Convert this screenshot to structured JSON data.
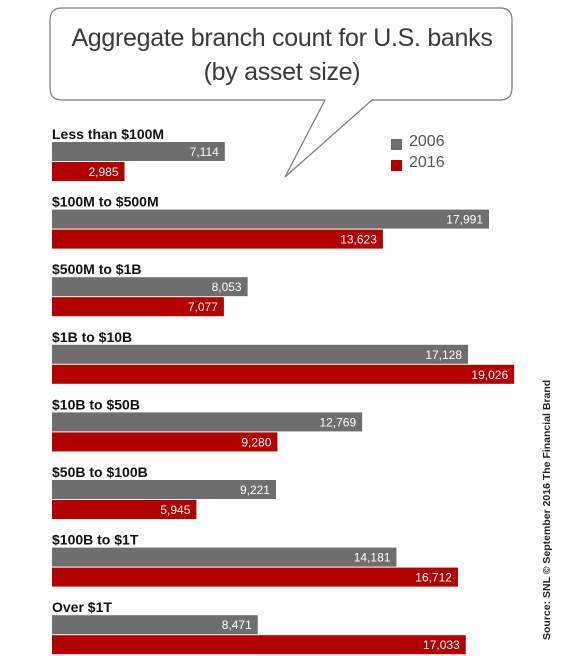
{
  "title_lines": [
    "Aggregate branch count for U.S. banks",
    "(by asset size)"
  ],
  "source": "Source: SNL © September 2016 The Financial Brand",
  "colors": {
    "2006": "#6e6e6e",
    "2016": "#b30000",
    "label_text": "#ffffff",
    "category_text": "#111111"
  },
  "chart_data": {
    "type": "bar",
    "orientation": "horizontal",
    "title": "Aggregate branch count for U.S. banks (by asset size)",
    "categories": [
      "Less than $100M",
      "$100M to $500M",
      "$500M to $1B",
      "$1B to $10B",
      "$10B to $50B",
      "$50B to $100B",
      "$100B to $1T",
      "Over $1T"
    ],
    "series": [
      {
        "name": "2006",
        "values": [
          7114,
          17991,
          8053,
          17128,
          12769,
          9221,
          14181,
          8471
        ],
        "labels": [
          "7,114",
          "17,991",
          "8,053",
          "17,128",
          "12,769",
          "9,221",
          "14,181",
          "8,471"
        ]
      },
      {
        "name": "2016",
        "values": [
          2985,
          13623,
          7077,
          19026,
          9280,
          5945,
          16712,
          17033
        ],
        "labels": [
          "2,985",
          "13,623",
          "7,077",
          "19,026",
          "9,280",
          "5,945",
          "16,712",
          "17,033"
        ]
      }
    ],
    "legend_position": "top-right",
    "grid": false
  }
}
